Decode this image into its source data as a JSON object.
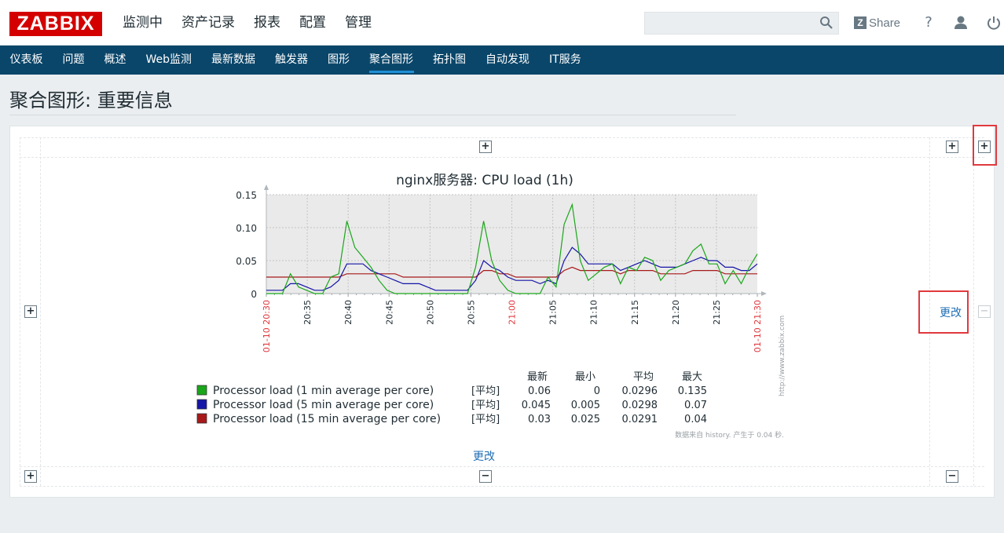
{
  "header": {
    "logo": "ZABBIX",
    "menu": [
      "监测中",
      "资产记录",
      "报表",
      "配置",
      "管理"
    ],
    "search_value": "",
    "share_badge": "Z",
    "share_label": "Share",
    "help_label": "?"
  },
  "submenu": {
    "items": [
      "仪表板",
      "问题",
      "概述",
      "Web监测",
      "最新数据",
      "触发器",
      "图形",
      "聚合图形",
      "拓扑图",
      "自动发现",
      "IT服务"
    ],
    "active": "聚合图形"
  },
  "page": {
    "title": "聚合图形: 重要信息"
  },
  "screen": {
    "change_link_right": "更改",
    "change_link_bottom": "更改"
  },
  "chart_data": {
    "type": "line",
    "title": "nginx服务器: CPU load (1h)",
    "ylim": [
      0,
      0.15
    ],
    "yticks": [
      "0",
      "0.05",
      "0.10",
      "0.15"
    ],
    "xtick_labels": [
      "01-10 20:30",
      "20:35",
      "20:40",
      "20:45",
      "20:50",
      "20:55",
      "21:00",
      "21:05",
      "21:10",
      "21:15",
      "21:20",
      "21:25",
      "01-10 21:30"
    ],
    "xtick_highlight": [
      "01-10 20:30",
      "21:00",
      "01-10 21:30"
    ],
    "x_minutes_start": 0,
    "x_minutes_end": 60,
    "watermark": "http://www.zabbix.com",
    "footer": "数据来自 history. 产生于 0.04 秒.",
    "legend_headers": [
      "最新",
      "最小",
      "平均",
      "最大"
    ],
    "series": [
      {
        "name": "Processor load (1 min average per core)",
        "func": "[平均]",
        "color": "#1aa61a",
        "stats": [
          "0.06",
          "0",
          "0.0296",
          "0.135"
        ],
        "values": [
          0,
          0,
          0,
          0.03,
          0.01,
          0.005,
          0,
          0,
          0.025,
          0.03,
          0.11,
          0.07,
          0.055,
          0.04,
          0.02,
          0.005,
          0,
          0,
          0,
          0,
          0,
          0,
          0,
          0,
          0,
          0,
          0.04,
          0.11,
          0.05,
          0.02,
          0.005,
          0,
          0,
          0,
          0,
          0.025,
          0.01,
          0.105,
          0.135,
          0.05,
          0.02,
          0.03,
          0.04,
          0.045,
          0.015,
          0.04,
          0.035,
          0.055,
          0.05,
          0.02,
          0.035,
          0.04,
          0.045,
          0.065,
          0.075,
          0.045,
          0.045,
          0.015,
          0.035,
          0.015,
          0.04,
          0.06
        ]
      },
      {
        "name": "Processor load (5 min average per core)",
        "func": "[平均]",
        "color": "#1515a8",
        "stats": [
          "0.045",
          "0.005",
          "0.0298",
          "0.07"
        ],
        "values": [
          0.005,
          0.005,
          0.005,
          0.015,
          0.015,
          0.01,
          0.005,
          0.005,
          0.01,
          0.02,
          0.045,
          0.045,
          0.045,
          0.035,
          0.03,
          0.025,
          0.02,
          0.015,
          0.015,
          0.015,
          0.01,
          0.005,
          0.005,
          0.005,
          0.005,
          0.005,
          0.02,
          0.05,
          0.04,
          0.035,
          0.025,
          0.02,
          0.02,
          0.02,
          0.015,
          0.02,
          0.015,
          0.05,
          0.07,
          0.06,
          0.045,
          0.045,
          0.045,
          0.045,
          0.035,
          0.04,
          0.045,
          0.05,
          0.045,
          0.04,
          0.04,
          0.04,
          0.045,
          0.05,
          0.055,
          0.05,
          0.05,
          0.04,
          0.04,
          0.035,
          0.035,
          0.045
        ]
      },
      {
        "name": "Processor load (15 min average per core)",
        "func": "[平均]",
        "color": "#a8191a",
        "stats": [
          "0.03",
          "0.025",
          "0.0291",
          "0.04"
        ],
        "values": [
          0.025,
          0.025,
          0.025,
          0.025,
          0.025,
          0.025,
          0.025,
          0.025,
          0.025,
          0.025,
          0.03,
          0.03,
          0.03,
          0.03,
          0.03,
          0.03,
          0.03,
          0.025,
          0.025,
          0.025,
          0.025,
          0.025,
          0.025,
          0.025,
          0.025,
          0.025,
          0.025,
          0.035,
          0.035,
          0.03,
          0.03,
          0.025,
          0.025,
          0.025,
          0.025,
          0.025,
          0.025,
          0.035,
          0.04,
          0.035,
          0.035,
          0.035,
          0.035,
          0.035,
          0.03,
          0.035,
          0.035,
          0.035,
          0.035,
          0.03,
          0.03,
          0.03,
          0.03,
          0.035,
          0.035,
          0.035,
          0.035,
          0.03,
          0.03,
          0.03,
          0.03,
          0.03
        ]
      }
    ]
  }
}
